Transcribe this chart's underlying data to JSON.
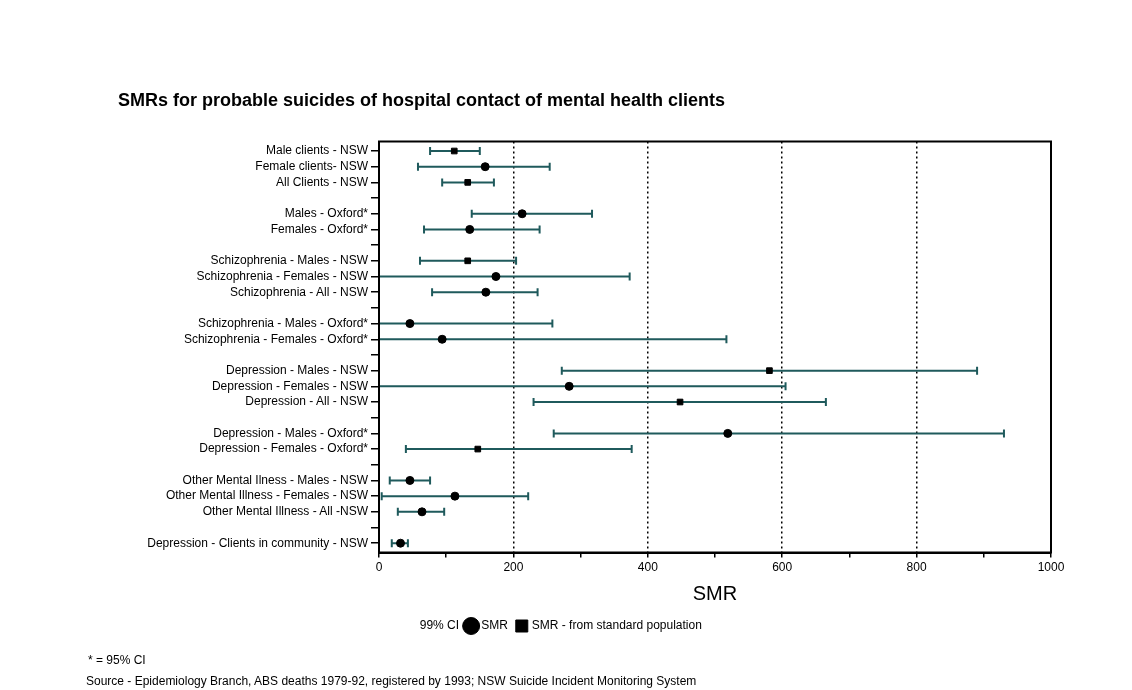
{
  "chart_data": {
    "type": "scatter",
    "title": "SMRs for probable suicides of hospital contact of mental health clients",
    "xlabel": "SMR",
    "orientation": "horizontal",
    "categories": [
      "Male clients - NSW",
      "Female clients- NSW",
      "All Clients - NSW",
      null,
      "Males - Oxford*",
      "Females - Oxford*",
      null,
      "Schizophrenia - Males - NSW",
      "Schizophrenia - Females - NSW",
      "Schizophrenia - All - NSW",
      null,
      "Schizophrenia - Males - Oxford*",
      "Schizophrenia - Females - Oxford*",
      null,
      "Depression - Males - NSW",
      "Depression - Females - NSW",
      "Depression - All - NSW",
      null,
      "Depression - Males - Oxford*",
      "Depression - Females - Oxford*",
      null,
      "Other Mental Ilness - Males - NSW",
      "Other Mental Illness - Females - NSW",
      "Other Mental Illness - All -NSW",
      null,
      "Depression - Clients in community - NSW"
    ],
    "series": [
      {
        "name": "SMR",
        "color": "#000000",
        "marker": "circle",
        "values": [
          null,
          158,
          null,
          null,
          213,
          135,
          null,
          null,
          174,
          159,
          null,
          46,
          94,
          null,
          null,
          283,
          null,
          null,
          519,
          null,
          null,
          46,
          113,
          64,
          null,
          32
        ],
        "errors": [
          null,
          [
            58,
            254
          ],
          null,
          null,
          [
            138,
            317
          ],
          [
            67,
            239
          ],
          null,
          null,
          [
            0,
            373
          ],
          [
            79,
            236
          ],
          null,
          [
            0,
            258
          ],
          [
            0,
            517
          ],
          null,
          null,
          [
            0,
            605
          ],
          null,
          null,
          [
            260,
            930
          ],
          null,
          null,
          [
            16,
            76
          ],
          [
            4,
            222
          ],
          [
            28,
            97
          ],
          null,
          [
            19,
            43
          ]
        ]
      },
      {
        "name": "SMR - from standard population",
        "color": "#000000",
        "marker": "square",
        "values": [
          112,
          null,
          132,
          null,
          null,
          null,
          null,
          132,
          null,
          null,
          null,
          null,
          null,
          null,
          581,
          null,
          448,
          null,
          null,
          147,
          null,
          null,
          null,
          null,
          null,
          null
        ],
        "errors": [
          [
            76,
            150
          ],
          null,
          [
            94,
            171
          ],
          null,
          null,
          null,
          null,
          [
            61,
            204
          ],
          null,
          null,
          null,
          null,
          null,
          null,
          [
            272,
            890
          ],
          null,
          [
            230,
            665
          ],
          null,
          null,
          [
            40,
            376
          ],
          null,
          null,
          null,
          null,
          null,
          null
        ]
      }
    ],
    "xlim": [
      0,
      1000
    ],
    "xticks": [
      0,
      {
        "value": 100,
        "label": null
      },
      200,
      {
        "value": 300,
        "label": null
      },
      400,
      {
        "value": 500,
        "label": null
      },
      600,
      {
        "value": 700,
        "label": null
      },
      800,
      {
        "value": 900,
        "label": null
      },
      1000
    ],
    "grid": "x",
    "legend": "bottom",
    "line_style": "dotted",
    "annotations": [
      "99% CI",
      "* = 95% CI",
      "Source - Epidemiology Branch, ABS deaths 1979-92, registered by 1993; NSW Suicide Incident Monitoring System"
    ]
  }
}
